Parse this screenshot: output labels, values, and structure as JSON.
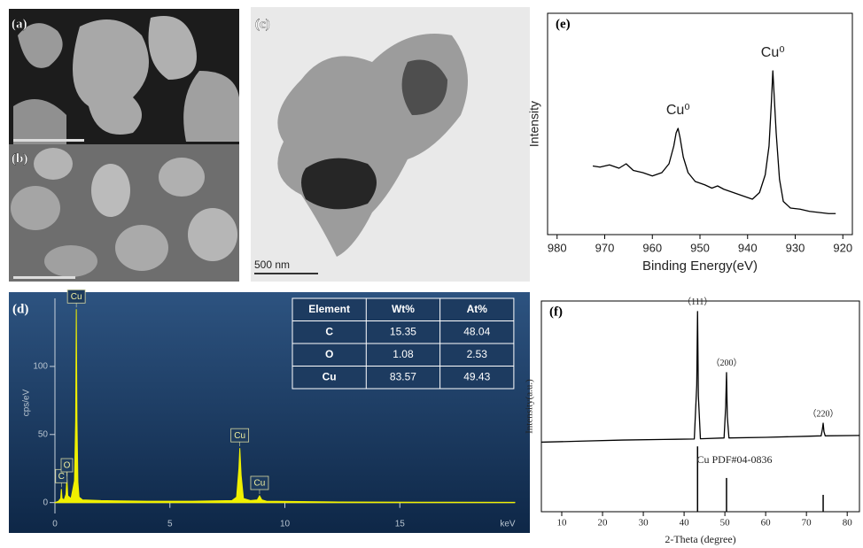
{
  "panels": [
    {
      "label": "(a)"
    },
    {
      "label": "(b)"
    },
    {
      "label": "(c)",
      "scale_bar": "500 nm"
    }
  ],
  "chart_data": [
    {
      "type": "area",
      "label": "(d)",
      "y_label": "cps/eV",
      "x_unit": "keV",
      "xlim": [
        0,
        20
      ],
      "xticks": [
        0,
        5,
        10,
        15
      ],
      "ylim": [
        -8,
        150
      ],
      "yticks": [
        0,
        50,
        100
      ],
      "series": [
        {
          "color": "#f0f000",
          "x": [
            0,
            0.15,
            0.25,
            0.28,
            0.31,
            0.4,
            0.48,
            0.52,
            0.56,
            0.7,
            0.85,
            0.9,
            0.93,
            0.96,
            1.0,
            1.05,
            1.2,
            2,
            4,
            6,
            7.7,
            7.9,
            8.0,
            8.04,
            8.1,
            8.2,
            8.5,
            8.8,
            8.9,
            9.0,
            9.2,
            12,
            16,
            20
          ],
          "values": [
            0,
            1,
            3,
            10,
            3,
            2,
            6,
            18,
            5,
            3,
            16,
            60,
            142,
            60,
            15,
            4,
            2,
            1.5,
            1,
            1,
            1.5,
            4,
            25,
            40,
            20,
            3,
            1.5,
            2,
            5,
            2,
            1,
            0.5,
            0.3,
            0.2
          ]
        }
      ],
      "annotations": [
        {
          "text": "C",
          "x": 0.28,
          "y": 10
        },
        {
          "text": "O",
          "x": 0.52,
          "y": 18
        },
        {
          "text": "Cu",
          "x": 0.93,
          "y": 142
        },
        {
          "text": "Cu",
          "x": 8.04,
          "y": 40
        },
        {
          "text": "Cu",
          "x": 8.9,
          "y": 5
        }
      ],
      "table": {
        "columns": [
          "Element",
          "Wt%",
          "At%"
        ],
        "rows": [
          [
            "C",
            15.35,
            48.04
          ],
          [
            "O",
            1.08,
            2.53
          ],
          [
            "Cu",
            83.57,
            49.43
          ]
        ]
      }
    },
    {
      "type": "line",
      "label": "(e)",
      "y_label": "Intensity",
      "x_label": "Binding Energy(eV)",
      "xlim": [
        982,
        918
      ],
      "xticks": [
        980,
        970,
        960,
        950,
        940,
        930,
        920
      ],
      "ylim": [
        0,
        100
      ],
      "series": [
        {
          "color": "#000000",
          "x": [
            972.5,
            971,
            969,
            967,
            965.5,
            964,
            962,
            960,
            958,
            956.5,
            955.5,
            955,
            954.6,
            954.2,
            953.5,
            952.5,
            951,
            949,
            947.5,
            946.3,
            945,
            943,
            941,
            939,
            937.5,
            936.3,
            935.5,
            935,
            934.7,
            934.4,
            934,
            933.3,
            932.5,
            931,
            929,
            927,
            925,
            923,
            921.5
          ],
          "values": [
            31,
            30.5,
            31.5,
            30,
            32,
            29,
            28,
            26.5,
            28,
            32,
            40,
            46,
            48,
            44,
            35,
            28,
            24,
            22.5,
            21,
            22,
            20.5,
            19,
            17.5,
            16,
            19,
            27,
            40,
            60,
            74,
            62,
            46,
            25,
            15,
            12,
            11.5,
            10.5,
            10,
            9.5,
            9.5
          ]
        }
      ],
      "annotations": [
        {
          "text": "Cu⁰",
          "x": 954.6,
          "y": 48
        },
        {
          "text": "Cu⁰",
          "x": 934.7,
          "y": 74
        }
      ]
    },
    {
      "type": "line",
      "label": "(f)",
      "y_label": "Intensity(a.u.)",
      "x_label": "2-Theta (degree)",
      "xlim": [
        5,
        83
      ],
      "xticks": [
        10,
        20,
        30,
        40,
        50,
        60,
        70,
        80
      ],
      "ylim": [
        0,
        100
      ],
      "series": [
        {
          "color": "#000000",
          "x": [
            5,
            15,
            25,
            35,
            42.5,
            43.1,
            43.3,
            43.5,
            44,
            49.8,
            50.2,
            50.4,
            50.6,
            51,
            60,
            70,
            73.6,
            73.9,
            74.1,
            74.3,
            74.6,
            83
          ],
          "values": [
            33,
            33.5,
            34,
            34.3,
            34.5,
            60,
            95,
            55,
            34.6,
            35,
            50,
            66,
            45,
            35,
            35.3,
            35.8,
            36,
            39,
            42,
            38,
            36,
            36.2
          ]
        }
      ],
      "reference": {
        "label": "Cu  PDF#04-0836",
        "color": "#000000",
        "x": [
          43.3,
          50.4,
          74.1
        ],
        "values": [
          31,
          16,
          8
        ]
      },
      "annotations": [
        {
          "text": "（111）",
          "x": 43.3,
          "y": 95
        },
        {
          "text": "（200）",
          "x": 50.4,
          "y": 66
        },
        {
          "text": "（220）",
          "x": 74.1,
          "y": 42
        }
      ]
    }
  ]
}
